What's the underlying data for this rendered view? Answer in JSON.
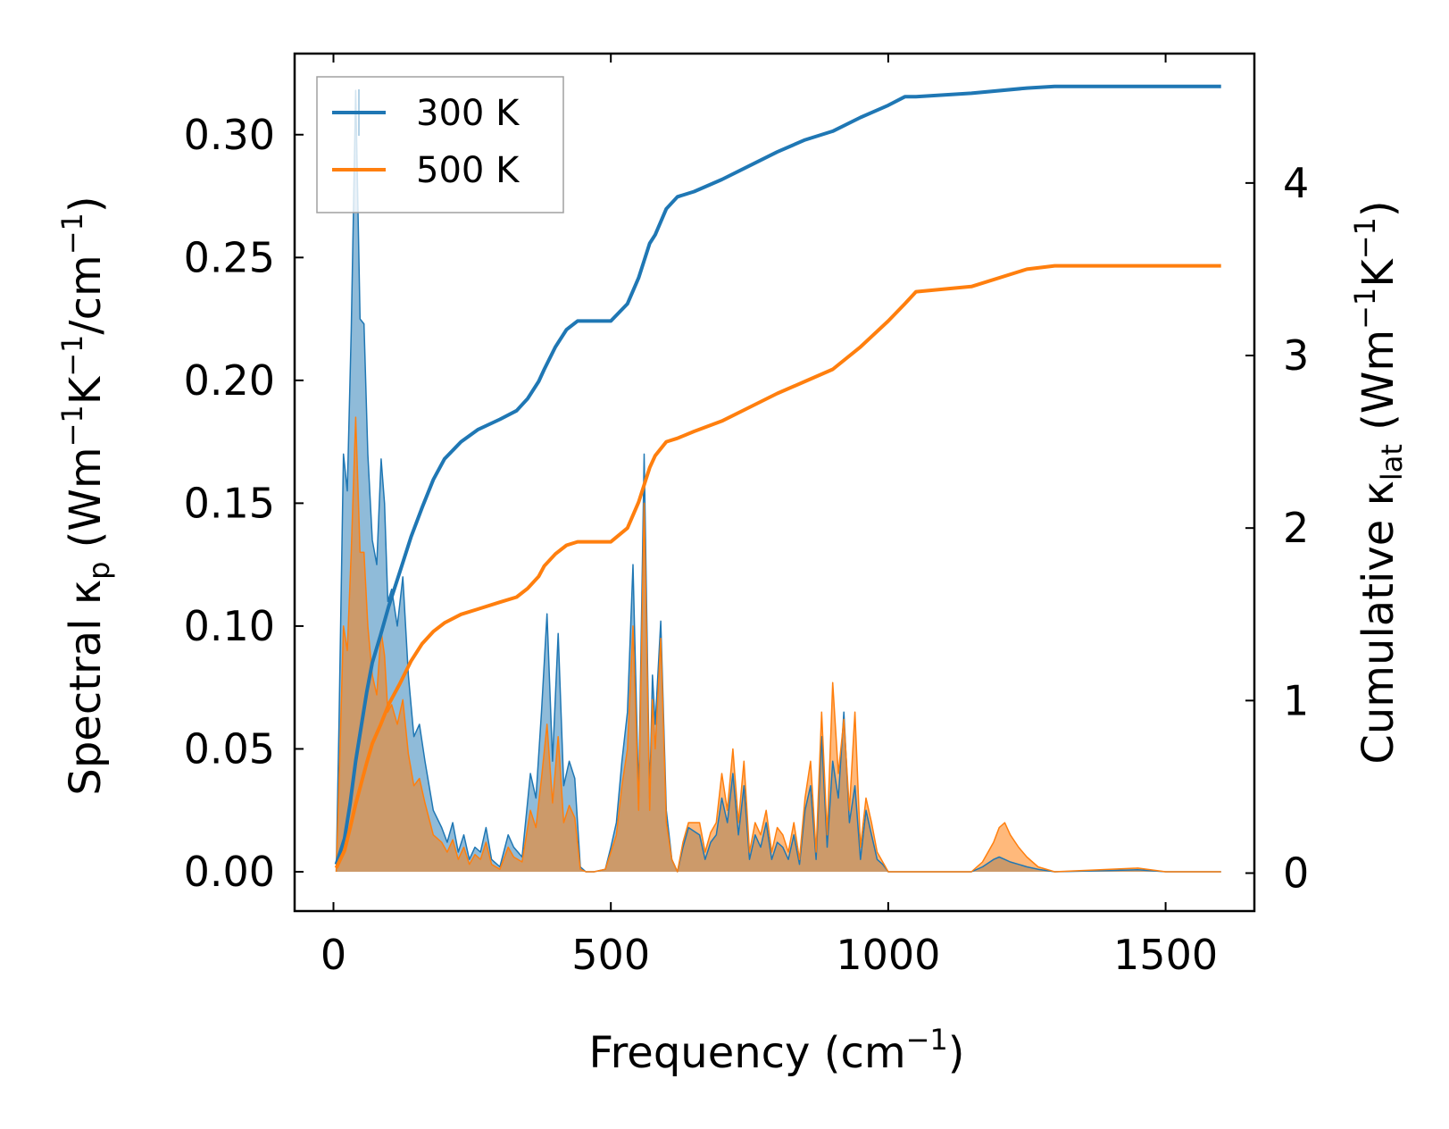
{
  "chart_data": {
    "type": "line",
    "xlabel": "Frequency (cm",
    "xlabel_sup": "−1",
    "xlabel_tail": ")",
    "ylabel_left": {
      "part1": "Spectral κ",
      "sub1": "p",
      "part2": " (Wm",
      "sup1": "−1",
      "part3": "K",
      "sup2": "−1",
      "part4": "/cm",
      "sup3": "−1",
      "part5": ")"
    },
    "ylabel_right": {
      "part1": "Cumulative κ",
      "sub1": "lat",
      "part2": " (Wm",
      "sup1": "−1",
      "part3": "K",
      "sup2": "−1",
      "part4": ")"
    },
    "xlim": [
      -70,
      1660
    ],
    "ylim_left": [
      -0.016,
      0.333
    ],
    "ylim_right": [
      -0.22,
      4.75
    ],
    "xticks": [
      0,
      500,
      1000,
      1500
    ],
    "xtick_labels": [
      "0",
      "500",
      "1000",
      "1500"
    ],
    "yticks_left": [
      0,
      0.05,
      0.1,
      0.15,
      0.2,
      0.25,
      0.3
    ],
    "ytick_labels_left": [
      "0.00",
      "0.05",
      "0.10",
      "0.15",
      "0.20",
      "0.25",
      "0.30"
    ],
    "yticks_right": [
      0,
      1,
      2,
      3,
      4
    ],
    "ytick_labels_right": [
      "0",
      "1",
      "2",
      "3",
      "4"
    ],
    "legend": {
      "location": "upper-left",
      "entries": [
        "300 K",
        "500 K"
      ]
    },
    "colors": {
      "s300": "#1f77b4",
      "s500": "#ff7f0e"
    },
    "spectral_300K": {
      "x": [
        5,
        10,
        18,
        25,
        32,
        40,
        48,
        55,
        62,
        70,
        78,
        86,
        92,
        98,
        105,
        115,
        125,
        135,
        145,
        155,
        165,
        180,
        195,
        205,
        215,
        225,
        235,
        245,
        255,
        265,
        275,
        285,
        300,
        315,
        325,
        340,
        355,
        365,
        375,
        385,
        395,
        405,
        415,
        425,
        435,
        445,
        455,
        470,
        490,
        500,
        510,
        520,
        530,
        540,
        550,
        560,
        570,
        575,
        580,
        590,
        600,
        610,
        620,
        630,
        640,
        660,
        670,
        680,
        690,
        700,
        710,
        720,
        730,
        740,
        750,
        760,
        770,
        780,
        790,
        800,
        810,
        820,
        830,
        840,
        850,
        860,
        870,
        880,
        890,
        900,
        910,
        920,
        930,
        940,
        950,
        960,
        970,
        980,
        990,
        1000,
        1010,
        1020,
        1030,
        1040,
        1050,
        1060,
        1100,
        1150,
        1170,
        1190,
        1200,
        1210,
        1220,
        1235,
        1250,
        1270,
        1300,
        1400,
        1450,
        1500,
        1600
      ],
      "y": [
        0.0,
        0.06,
        0.17,
        0.155,
        0.22,
        0.318,
        0.225,
        0.223,
        0.17,
        0.135,
        0.125,
        0.168,
        0.15,
        0.11,
        0.115,
        0.1,
        0.12,
        0.08,
        0.055,
        0.06,
        0.045,
        0.025,
        0.018,
        0.012,
        0.02,
        0.008,
        0.015,
        0.005,
        0.01,
        0.008,
        0.018,
        0.005,
        0.002,
        0.015,
        0.01,
        0.006,
        0.04,
        0.03,
        0.065,
        0.105,
        0.045,
        0.097,
        0.035,
        0.045,
        0.038,
        0.002,
        0.0,
        0.0,
        0.001,
        0.01,
        0.02,
        0.045,
        0.065,
        0.125,
        0.03,
        0.17,
        0.03,
        0.08,
        0.06,
        0.102,
        0.025,
        0.005,
        0.0,
        0.01,
        0.018,
        0.015,
        0.005,
        0.012,
        0.015,
        0.03,
        0.02,
        0.04,
        0.015,
        0.035,
        0.005,
        0.015,
        0.01,
        0.02,
        0.005,
        0.012,
        0.01,
        0.005,
        0.015,
        0.003,
        0.025,
        0.035,
        0.005,
        0.055,
        0.01,
        0.045,
        0.03,
        0.065,
        0.02,
        0.035,
        0.005,
        0.025,
        0.015,
        0.005,
        0.003,
        0.0,
        0.0,
        0.0,
        0.0,
        0.0,
        0.0,
        0.0,
        0.0,
        0.0,
        0.002,
        0.005,
        0.006,
        0.005,
        0.004,
        0.003,
        0.002,
        0.001,
        0.0,
        0.0005,
        0.0008,
        0.0,
        0.0
      ]
    },
    "spectral_500K": {
      "x": [
        5,
        10,
        18,
        25,
        32,
        40,
        48,
        55,
        62,
        70,
        78,
        86,
        92,
        98,
        105,
        115,
        125,
        135,
        145,
        155,
        165,
        180,
        195,
        205,
        215,
        225,
        235,
        245,
        255,
        265,
        275,
        285,
        300,
        315,
        325,
        340,
        355,
        365,
        375,
        385,
        395,
        405,
        415,
        425,
        435,
        445,
        455,
        470,
        490,
        500,
        510,
        520,
        530,
        540,
        550,
        560,
        570,
        575,
        580,
        590,
        600,
        610,
        620,
        630,
        640,
        660,
        670,
        680,
        690,
        700,
        710,
        720,
        730,
        740,
        750,
        760,
        770,
        780,
        790,
        800,
        810,
        820,
        830,
        840,
        850,
        860,
        870,
        880,
        890,
        900,
        910,
        920,
        930,
        940,
        950,
        960,
        970,
        980,
        990,
        1000,
        1010,
        1020,
        1030,
        1040,
        1050,
        1060,
        1100,
        1150,
        1170,
        1190,
        1200,
        1210,
        1220,
        1235,
        1250,
        1270,
        1300,
        1400,
        1450,
        1500,
        1600
      ],
      "y": [
        0.0,
        0.035,
        0.1,
        0.09,
        0.13,
        0.185,
        0.13,
        0.13,
        0.1,
        0.08,
        0.072,
        0.098,
        0.088,
        0.065,
        0.068,
        0.06,
        0.07,
        0.048,
        0.035,
        0.038,
        0.028,
        0.015,
        0.012,
        0.008,
        0.013,
        0.005,
        0.01,
        0.003,
        0.007,
        0.005,
        0.012,
        0.003,
        0.001,
        0.01,
        0.006,
        0.004,
        0.025,
        0.018,
        0.038,
        0.06,
        0.028,
        0.055,
        0.02,
        0.027,
        0.022,
        0.001,
        0.0,
        0.0,
        0.001,
        0.008,
        0.015,
        0.035,
        0.05,
        0.1,
        0.025,
        0.15,
        0.025,
        0.07,
        0.05,
        0.095,
        0.02,
        0.005,
        0.0,
        0.012,
        0.02,
        0.02,
        0.008,
        0.016,
        0.02,
        0.04,
        0.025,
        0.05,
        0.02,
        0.045,
        0.008,
        0.02,
        0.015,
        0.025,
        0.008,
        0.018,
        0.015,
        0.008,
        0.02,
        0.005,
        0.03,
        0.045,
        0.008,
        0.065,
        0.015,
        0.077,
        0.04,
        0.062,
        0.025,
        0.065,
        0.01,
        0.03,
        0.02,
        0.008,
        0.004,
        0.0,
        0.0,
        0.0,
        0.0,
        0.0,
        0.0,
        0.0,
        0.0,
        0.0,
        0.004,
        0.012,
        0.018,
        0.02,
        0.015,
        0.01,
        0.006,
        0.002,
        0.0,
        0.001,
        0.0015,
        0.0,
        0.0
      ]
    },
    "cumulative_300K": {
      "x": [
        5,
        20,
        30,
        40,
        50,
        60,
        70,
        85,
        100,
        120,
        140,
        160,
        180,
        200,
        230,
        260,
        300,
        330,
        350,
        370,
        380,
        400,
        420,
        440,
        470,
        500,
        530,
        550,
        560,
        570,
        580,
        600,
        620,
        650,
        700,
        750,
        800,
        850,
        900,
        950,
        1000,
        1030,
        1050,
        1150,
        1250,
        1300,
        1600
      ],
      "y": [
        0.05,
        0.2,
        0.4,
        0.65,
        0.85,
        1.05,
        1.22,
        1.38,
        1.55,
        1.75,
        1.95,
        2.12,
        2.28,
        2.4,
        2.5,
        2.57,
        2.63,
        2.68,
        2.75,
        2.85,
        2.92,
        3.05,
        3.15,
        3.2,
        3.2,
        3.2,
        3.3,
        3.45,
        3.55,
        3.65,
        3.7,
        3.85,
        3.92,
        3.95,
        4.02,
        4.1,
        4.18,
        4.25,
        4.3,
        4.38,
        4.45,
        4.5,
        4.5,
        4.52,
        4.55,
        4.56,
        4.56
      ]
    },
    "cumulative_500K": {
      "x": [
        5,
        20,
        30,
        40,
        50,
        60,
        70,
        85,
        100,
        120,
        140,
        160,
        180,
        200,
        230,
        260,
        300,
        330,
        350,
        370,
        380,
        400,
        420,
        440,
        470,
        500,
        530,
        550,
        560,
        570,
        580,
        600,
        620,
        650,
        700,
        750,
        800,
        850,
        900,
        950,
        1000,
        1030,
        1050,
        1150,
        1250,
        1300,
        1600
      ],
      "y": [
        0.03,
        0.13,
        0.26,
        0.4,
        0.52,
        0.64,
        0.75,
        0.86,
        0.98,
        1.1,
        1.23,
        1.33,
        1.4,
        1.45,
        1.5,
        1.53,
        1.57,
        1.6,
        1.65,
        1.72,
        1.78,
        1.85,
        1.9,
        1.92,
        1.92,
        1.92,
        2.0,
        2.15,
        2.25,
        2.35,
        2.42,
        2.5,
        2.52,
        2.56,
        2.62,
        2.7,
        2.78,
        2.85,
        2.92,
        3.05,
        3.2,
        3.3,
        3.37,
        3.4,
        3.5,
        3.52,
        3.52
      ]
    }
  }
}
